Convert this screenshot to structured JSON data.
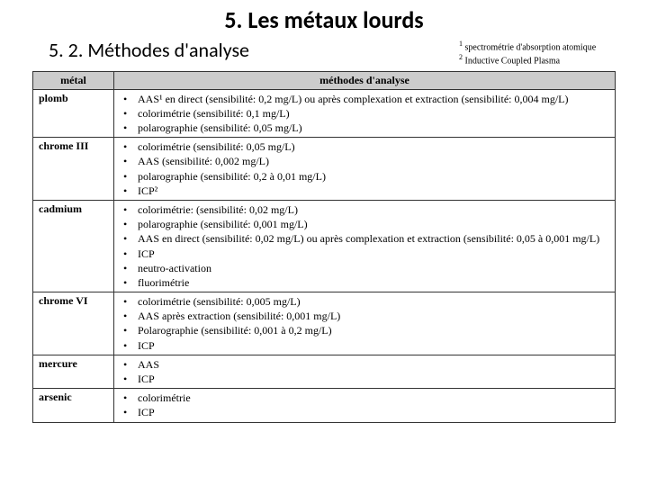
{
  "title": "5. Les métaux lourds",
  "subtitle": "5. 2. Méthodes d'analyse",
  "footnotes": {
    "f1": {
      "num": "1",
      "text": "spectrométrie d'absorption atomique"
    },
    "f2": {
      "num": "2",
      "text": "Inductive Coupled Plasma"
    }
  },
  "headers": {
    "metal": "métal",
    "methods": "méthodes d'analyse"
  },
  "rows": [
    {
      "metal": "plomb",
      "items": [
        "AAS¹ en direct (sensibilité: 0,2 mg/L) ou après complexation et extraction (sensibilité: 0,004 mg/L)",
        "colorimétrie (sensibilité: 0,1 mg/L)",
        "polarographie (sensibilité: 0,05 mg/L)"
      ]
    },
    {
      "metal": "chrome III",
      "items": [
        "colorimétrie (sensibilité: 0,05 mg/L)",
        "AAS (sensibilité: 0,002 mg/L)",
        "polarographie (sensibilité: 0,2 à 0,01 mg/L)",
        "ICP²"
      ]
    },
    {
      "metal": "cadmium",
      "items": [
        "colorimétrie: (sensibilité: 0,02 mg/L)",
        "polarographie (sensibilité: 0,001 mg/L)",
        "AAS en direct (sensibilité: 0,02 mg/L) ou après complexation et extraction (sensibilité: 0,05 à 0,001 mg/L)",
        "ICP",
        "neutro-activation",
        "fluorimétrie"
      ]
    },
    {
      "metal": "chrome VI",
      "items": [
        "colorimétrie (sensibilité: 0,005 mg/L)",
        "AAS après extraction (sensibilité: 0,001 mg/L)",
        "Polarographie (sensibilité: 0,001 à 0,2 mg/L)",
        "ICP"
      ]
    },
    {
      "metal": "mercure",
      "items": [
        "AAS",
        "ICP"
      ]
    },
    {
      "metal": "arsenic",
      "items": [
        "colorimétrie",
        "ICP"
      ]
    }
  ]
}
